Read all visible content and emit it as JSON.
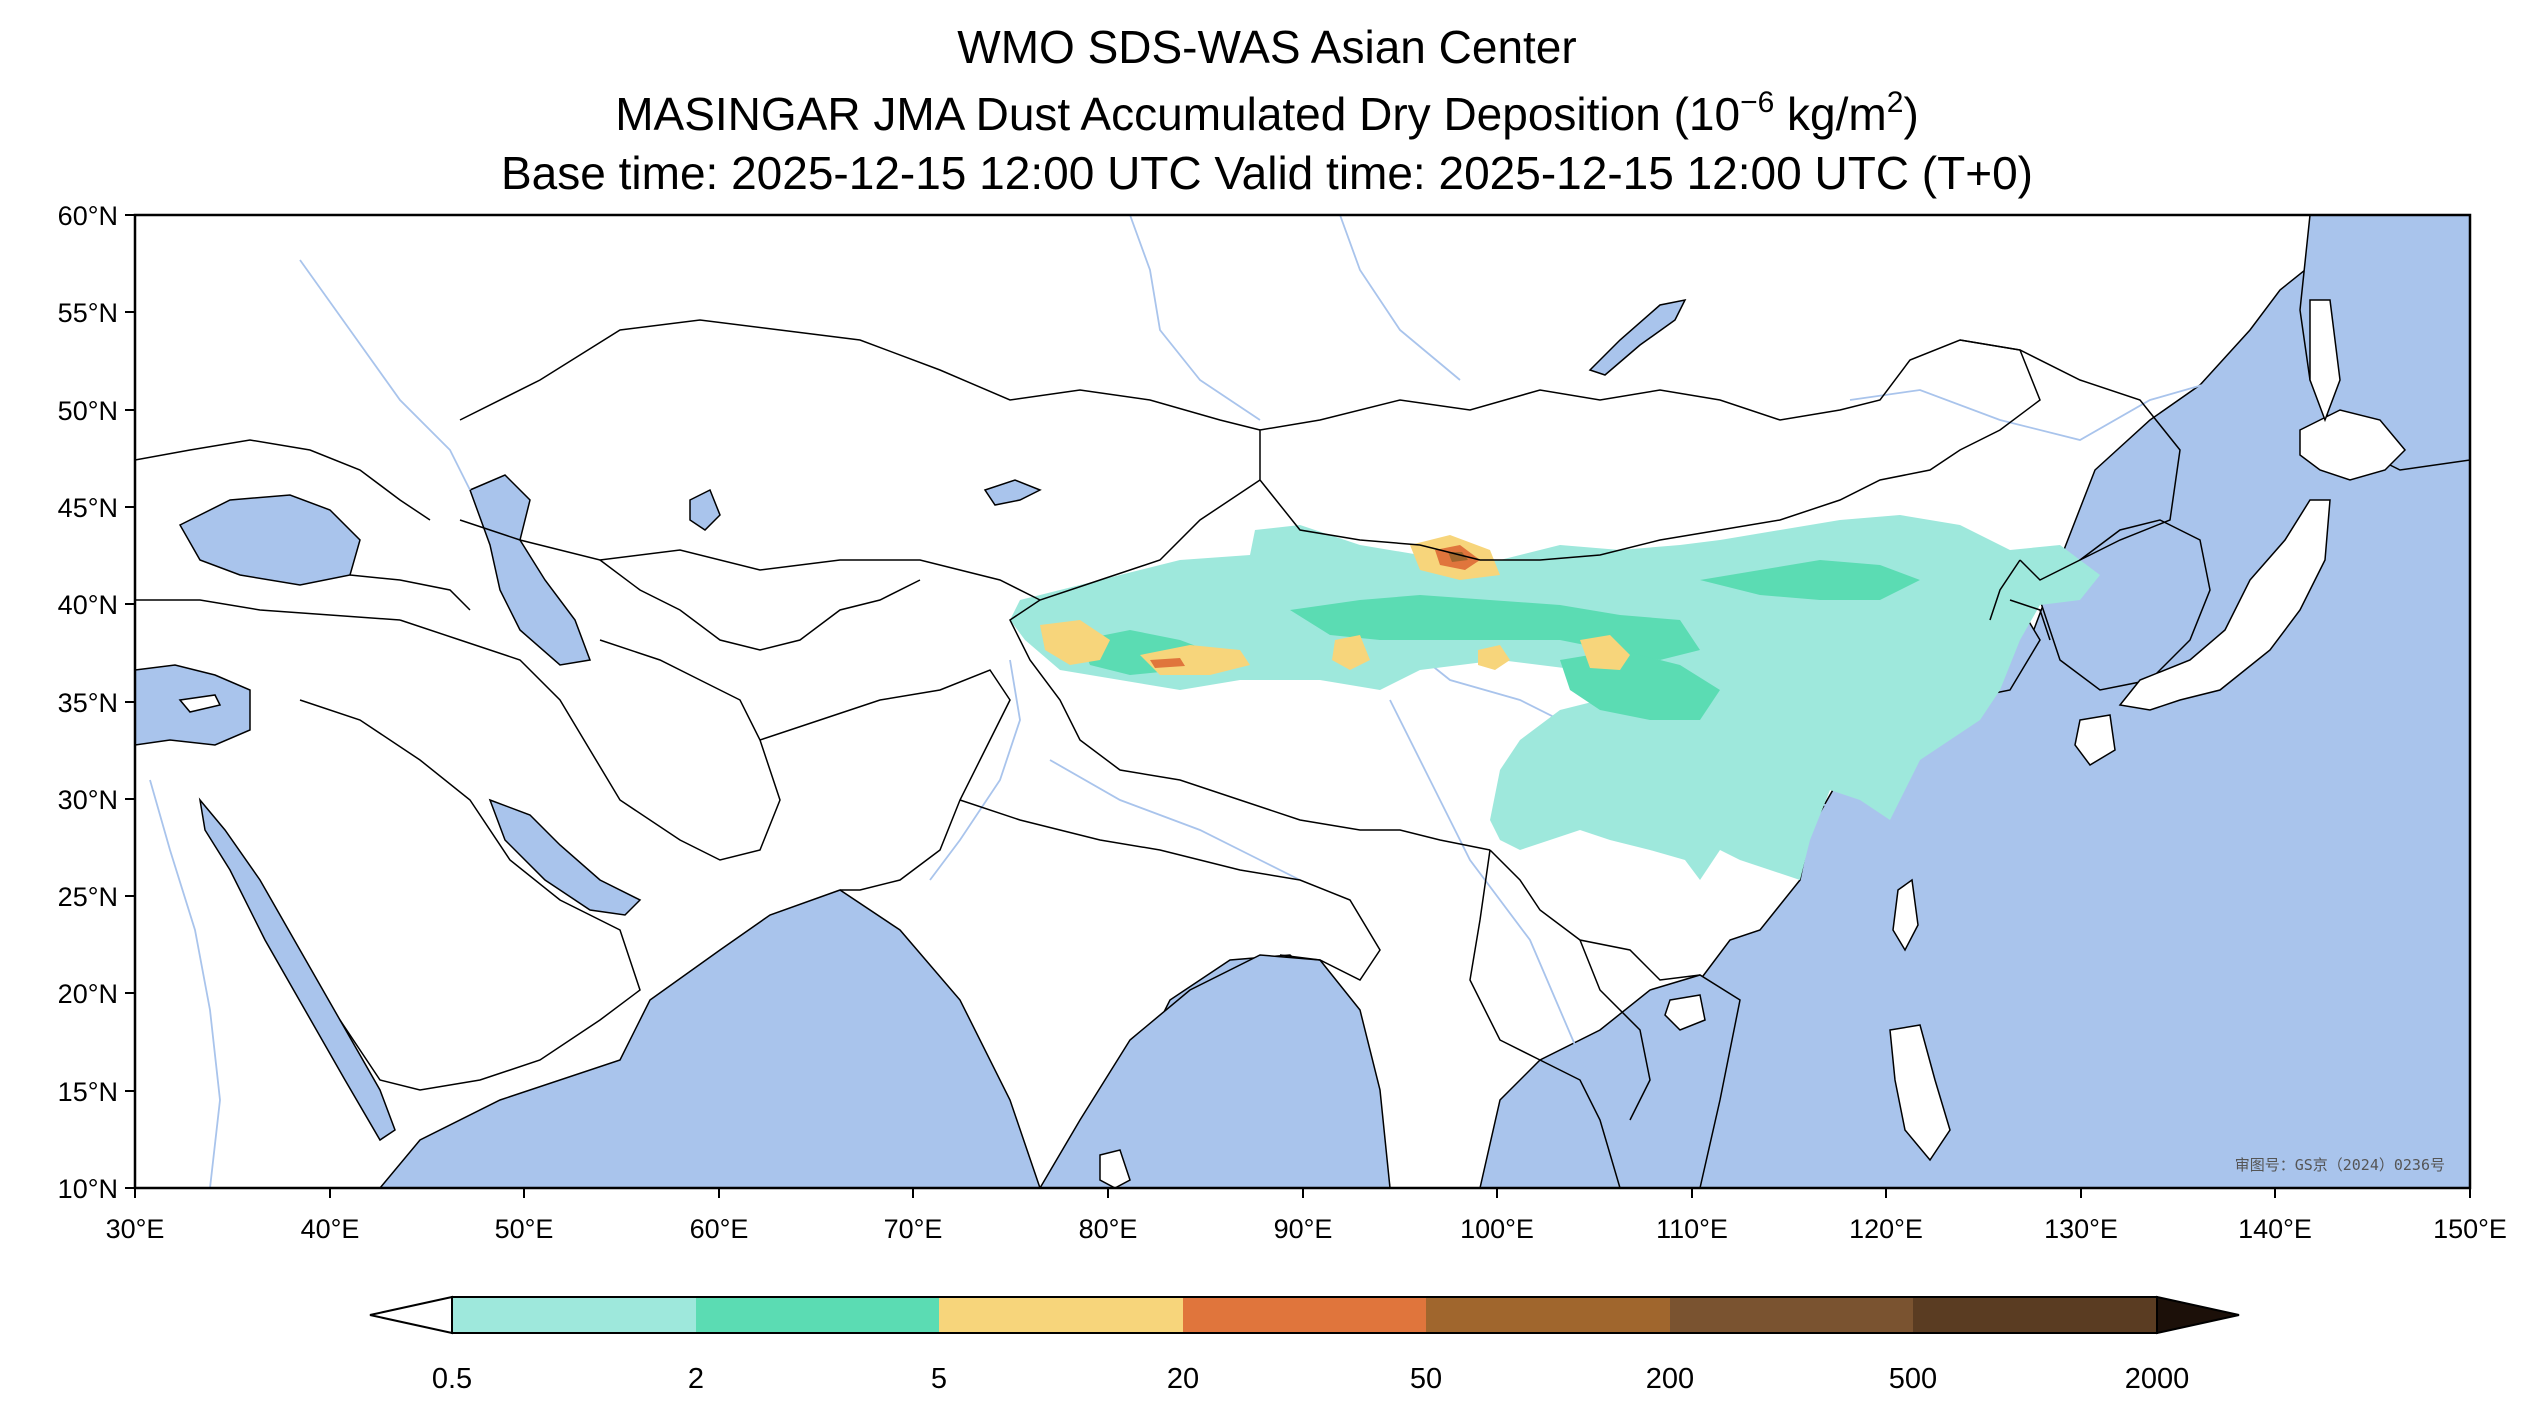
{
  "title": {
    "line1": "WMO SDS-WAS Asian Center",
    "line2_prefix": "MASINGAR JMA Dust Accumulated Dry Deposition (10",
    "line2_exp1": "−6",
    "line2_mid": " kg/m",
    "line2_exp2": "2",
    "line2_suffix": ")",
    "line3": "Base time: 2025-12-15 12:00 UTC Valid time: 2025-12-15 12:00 UTC (T+0)"
  },
  "map": {
    "lon_range": [
      30,
      150
    ],
    "lat_range": [
      10,
      60
    ],
    "lon_ticks": [
      "30°E",
      "40°E",
      "50°E",
      "60°E",
      "70°E",
      "80°E",
      "90°E",
      "100°E",
      "110°E",
      "120°E",
      "130°E",
      "140°E",
      "150°E"
    ],
    "lat_ticks": [
      "10°N",
      "15°N",
      "20°N",
      "25°N",
      "30°N",
      "35°N",
      "40°N",
      "45°N",
      "50°N",
      "55°N",
      "60°N"
    ],
    "ocean_color": "#a9c4ec",
    "land_color": "#ffffff",
    "border_color": "#000000",
    "river_color": "#a9c4ec",
    "approval_text": "审图号：GS京（2024）0236号"
  },
  "colorbar": {
    "boundaries": [
      "0.5",
      "2",
      "5",
      "20",
      "50",
      "200",
      "500",
      "2000"
    ],
    "colors": [
      "#9ee8dc",
      "#5bdcb3",
      "#f7d57b",
      "#e0753c",
      "#a0662d",
      "#7a5330",
      "#5a3c22"
    ],
    "extend_min_color": "#ffffff",
    "extend_max_color": "#1c1009"
  }
}
